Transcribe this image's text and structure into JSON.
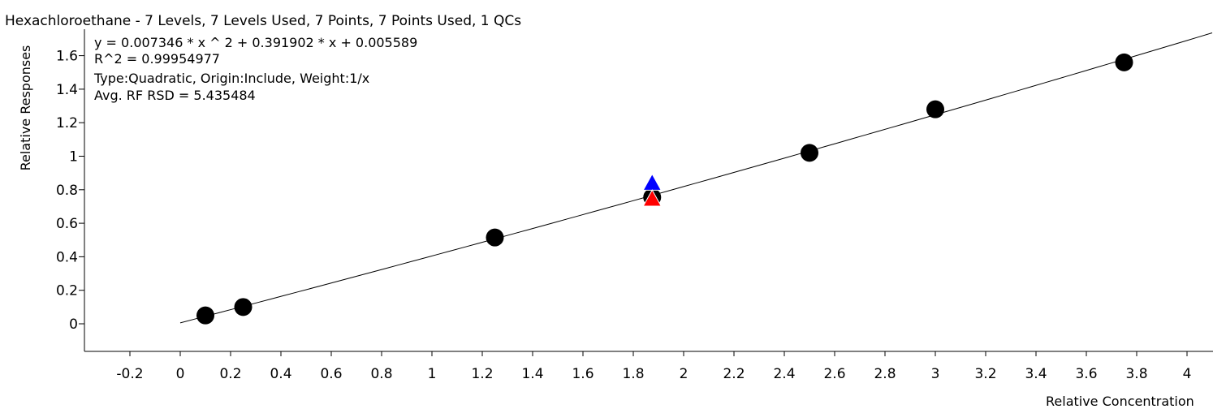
{
  "chart_data": {
    "type": "scatter",
    "title": "Hexachloroethane - 7 Levels, 7 Levels Used, 7 Points, 7 Points Used, 1 QCs",
    "equation_lines": [
      "y = 0.007346 * x ^ 2  + 0.391902 * x  + 0.005589",
      "R^2 = 0.99954977",
      "Type:Quadratic, Origin:Include, Weight:1/x",
      "Avg. RF RSD = 5.435484"
    ],
    "xlabel": "Relative Concentration",
    "ylabel": "Relative Responses",
    "xlim": [
      -0.38,
      4.12
    ],
    "ylim": [
      -0.17,
      1.72
    ],
    "x_ticks": [
      "-0.2",
      "0",
      "0.2",
      "0.4",
      "0.6",
      "0.8",
      "1",
      "1.2",
      "1.4",
      "1.6",
      "1.8",
      "2",
      "2.2",
      "2.4",
      "2.6",
      "2.8",
      "3",
      "3.2",
      "3.4",
      "3.6",
      "3.8",
      "4"
    ],
    "y_ticks": [
      "0",
      "0.2",
      "0.4",
      "0.6",
      "0.8",
      "1",
      "1.2",
      "1.4",
      "1.6"
    ],
    "fit": {
      "a": 0.007346,
      "b": 0.391902,
      "c": 0.005589,
      "x_range": [
        0,
        4.1
      ]
    },
    "series": [
      {
        "type": "calibration",
        "color": "#000000",
        "marker": "circle",
        "x": [
          0.1,
          0.25,
          1.25,
          1.875,
          2.5,
          3.0,
          3.75
        ],
        "y": [
          0.05,
          0.1,
          0.515,
          0.755,
          1.02,
          1.28,
          1.56
        ]
      },
      {
        "type": "qc",
        "color": "#0000ff",
        "marker": "triangle",
        "x": [
          1.875
        ],
        "y": [
          0.84
        ]
      },
      {
        "type": "qc",
        "color": "#ff0000",
        "marker": "triangle",
        "x": [
          1.875
        ],
        "y": [
          0.745
        ]
      }
    ],
    "grid": false,
    "legend": "none"
  }
}
